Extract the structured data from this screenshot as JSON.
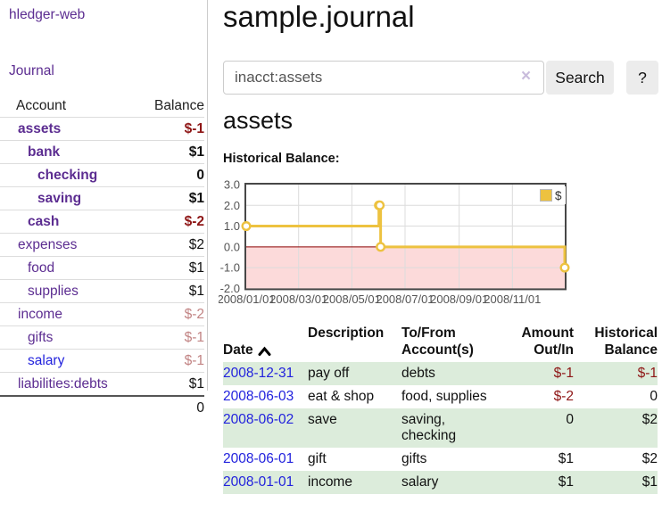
{
  "colors": {
    "purple": "#5c2d91",
    "blue": "#2222dd",
    "neg_strong": "#8e1616",
    "neg_faded": "#c28484",
    "stripe_green": "#dcecdb",
    "gold": "#edc240",
    "negative_fill": "#fcdada",
    "zero_line": "#8b0000",
    "grid": "#dcdcdc",
    "plot_border": "#474747",
    "axis_text": "#545454"
  },
  "brand": "hledger-web",
  "nav": {
    "journal_label": "Journal"
  },
  "sidebar": {
    "account_header": "Account",
    "balance_header": "Balance",
    "accounts": [
      {
        "name": "assets",
        "indent": 1,
        "bold": true,
        "balance": "$-1",
        "balance_style": "neg-strong"
      },
      {
        "name": "bank",
        "indent": 2,
        "bold": true,
        "balance": "$1",
        "balance_style": "pos"
      },
      {
        "name": "checking",
        "indent": 3,
        "bold": true,
        "balance": "0",
        "balance_style": "pos"
      },
      {
        "name": "saving",
        "indent": 3,
        "bold": true,
        "balance": "$1",
        "balance_style": "pos"
      },
      {
        "name": "cash",
        "indent": 2,
        "bold": true,
        "balance": "$-2",
        "balance_style": "neg-strong"
      },
      {
        "name": "expenses",
        "indent": 1,
        "bold": false,
        "balance": "$2",
        "balance_style": "pos"
      },
      {
        "name": "food",
        "indent": 2,
        "bold": false,
        "balance": "$1",
        "balance_style": "pos"
      },
      {
        "name": "supplies",
        "indent": 2,
        "bold": false,
        "balance": "$1",
        "balance_style": "pos"
      },
      {
        "name": "income",
        "indent": 1,
        "bold": false,
        "balance": "$-2",
        "balance_style": "neg-faded"
      },
      {
        "name": "gifts",
        "indent": 2,
        "bold": false,
        "balance": "$-1",
        "balance_style": "neg-faded"
      },
      {
        "name": "salary",
        "indent": 2,
        "bold": false,
        "link_blue": true,
        "balance": "$-1",
        "balance_style": "neg-faded"
      },
      {
        "name": "liabilities:debts",
        "indent": 1,
        "bold": false,
        "balance": "$1",
        "balance_style": "pos"
      }
    ],
    "total": "0"
  },
  "main": {
    "title": "sample.journal",
    "search": {
      "value": "inacct:assets",
      "clear_icon": "×",
      "button_label": "Search",
      "help_label": "?"
    },
    "account_heading": "assets",
    "chart_label": "Historical Balance:"
  },
  "chart_data": {
    "type": "line",
    "title": "Historical Balance",
    "steps": true,
    "xlim_days": [
      0,
      365
    ],
    "ylim": [
      -2,
      3
    ],
    "y_ticks": [
      "3.0",
      "2.0",
      "1.0",
      "0.0",
      "-1.0",
      "-2.0"
    ],
    "y_tick_values": [
      3,
      2,
      1,
      0,
      -1,
      -2
    ],
    "x_ticks": [
      {
        "label": "2008/01/01",
        "day": 0
      },
      {
        "label": "2008/03/01",
        "day": 60
      },
      {
        "label": "2008/05/01",
        "day": 121
      },
      {
        "label": "2008/07/01",
        "day": 182
      },
      {
        "label": "2008/09/01",
        "day": 244
      },
      {
        "label": "2008/11/01",
        "day": 305
      }
    ],
    "legend": {
      "label": "$",
      "position": "top-right"
    },
    "series": [
      {
        "name": "$",
        "points": [
          {
            "date": "2008-01-01",
            "day": 0,
            "value": 1
          },
          {
            "date": "2008-06-01",
            "day": 152,
            "value": 2
          },
          {
            "date": "2008-06-02",
            "day": 153,
            "value": 2
          },
          {
            "date": "2008-06-03",
            "day": 154,
            "value": 0
          },
          {
            "date": "2008-12-31",
            "day": 365,
            "value": -1
          }
        ]
      }
    ]
  },
  "register": {
    "headers": {
      "date": "Date",
      "description": "Description",
      "accounts": "To/From\nAccount(s)",
      "amount": "Amount\nOut/In",
      "balance": "Historical\nBalance"
    },
    "rows": [
      {
        "date": "2008-12-31",
        "description": "pay off",
        "accounts": "debts",
        "amount": "$-1",
        "amount_neg": true,
        "balance": "$-1",
        "balance_neg": true,
        "stripe": true
      },
      {
        "date": "2008-06-03",
        "description": "eat & shop",
        "accounts": "food, supplies",
        "amount": "$-2",
        "amount_neg": true,
        "balance": "0",
        "balance_neg": false,
        "stripe": false
      },
      {
        "date": "2008-06-02",
        "description": "save",
        "accounts": "saving, checking",
        "amount": "0",
        "amount_neg": false,
        "balance": "$2",
        "balance_neg": false,
        "stripe": true
      },
      {
        "date": "2008-06-01",
        "description": "gift",
        "accounts": "gifts",
        "amount": "$1",
        "amount_neg": false,
        "balance": "$2",
        "balance_neg": false,
        "stripe": false
      },
      {
        "date": "2008-01-01",
        "description": "income",
        "accounts": "salary",
        "amount": "$1",
        "amount_neg": false,
        "balance": "$1",
        "balance_neg": false,
        "stripe": true
      }
    ]
  }
}
